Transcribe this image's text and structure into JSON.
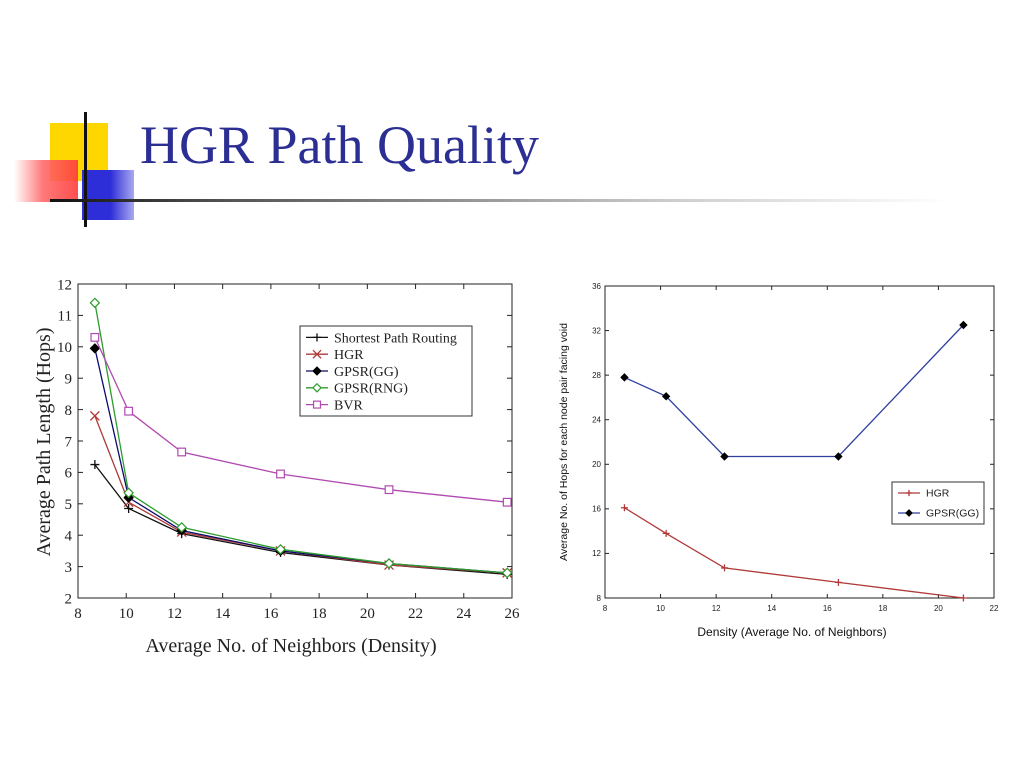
{
  "slide": {
    "title": "HGR Path Quality",
    "accent_colors": {
      "title": "#2b2e92",
      "yellow": "#ffd700",
      "red": "#ff5a5a",
      "blue": "#2e2ed8"
    }
  },
  "chart_data": [
    {
      "type": "line",
      "title": "",
      "xlabel": "Average No. of Neighbors (Density)",
      "ylabel": "Average Path Length (Hops)",
      "xlim": [
        8,
        26
      ],
      "ylim": [
        2,
        12
      ],
      "xticks": [
        8,
        10,
        12,
        14,
        16,
        18,
        20,
        22,
        24,
        26
      ],
      "yticks": [
        2,
        3,
        4,
        5,
        6,
        7,
        8,
        9,
        10,
        11,
        12
      ],
      "grid": false,
      "legend_position": "top-right",
      "series": [
        {
          "name": "Shortest Path Routing",
          "marker": "plus",
          "color": "#111111",
          "x": [
            8.7,
            10.1,
            12.3,
            16.4,
            20.9,
            25.8
          ],
          "y": [
            6.25,
            4.85,
            4.05,
            3.45,
            3.05,
            2.75
          ]
        },
        {
          "name": "HGR",
          "marker": "cross",
          "color": "#b03a3a",
          "x": [
            8.7,
            10.1,
            12.3,
            16.4,
            20.9,
            25.8
          ],
          "y": [
            7.8,
            5.05,
            4.1,
            3.5,
            3.05,
            2.8
          ]
        },
        {
          "name": "GPSR(GG)",
          "marker": "diamond-filled",
          "color": "#0a0a6e",
          "x": [
            8.7,
            10.1,
            12.3,
            16.4,
            20.9,
            25.8
          ],
          "y": [
            9.95,
            5.2,
            4.15,
            3.5,
            3.1,
            2.8
          ]
        },
        {
          "name": "GPSR(RNG)",
          "marker": "diamond-open",
          "color": "#2c9c2c",
          "x": [
            8.7,
            10.1,
            12.3,
            16.4,
            20.9,
            25.8
          ],
          "y": [
            11.4,
            5.35,
            4.25,
            3.55,
            3.1,
            2.8
          ]
        },
        {
          "name": "BVR",
          "marker": "square-open",
          "color": "#b04ab0",
          "x": [
            8.7,
            10.1,
            12.3,
            16.4,
            20.9,
            25.8
          ],
          "y": [
            10.3,
            7.95,
            6.65,
            5.95,
            5.45,
            5.05
          ]
        }
      ]
    },
    {
      "type": "line",
      "title": "",
      "xlabel": "Density (Average No. of Neighbors)",
      "ylabel": "Average No. of Hops for each node pair facing void",
      "xlim": [
        8,
        22
      ],
      "ylim": [
        8,
        36
      ],
      "xticks": [
        8,
        10,
        12,
        14,
        16,
        18,
        20,
        22
      ],
      "yticks": [
        8,
        12,
        16,
        20,
        24,
        28,
        32,
        36
      ],
      "grid": false,
      "legend_position": "bottom-right",
      "series": [
        {
          "name": "HGR",
          "marker": "plus",
          "color": "#b03a3a",
          "x": [
            8.7,
            10.2,
            12.3,
            16.4,
            20.9
          ],
          "y": [
            16.1,
            13.8,
            10.7,
            9.4,
            8.0
          ]
        },
        {
          "name": "GPSR(GG)",
          "marker": "diamond-filled",
          "color": "#2f3f9f",
          "x": [
            8.7,
            10.2,
            12.3,
            16.4,
            20.9
          ],
          "y": [
            27.8,
            26.1,
            20.7,
            20.7,
            32.5
          ]
        }
      ]
    }
  ]
}
